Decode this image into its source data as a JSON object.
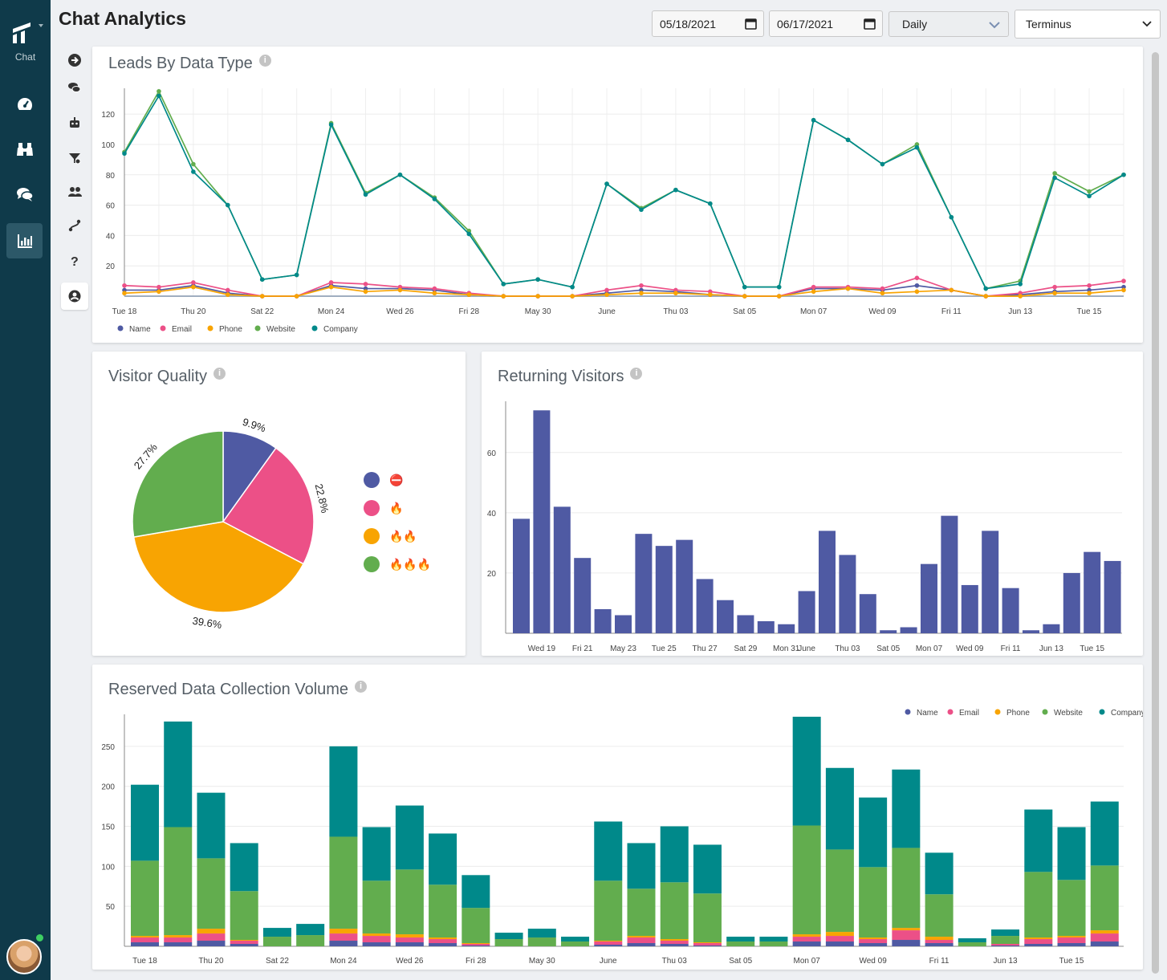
{
  "app": {
    "name": "Chat",
    "page_title": "Chat Analytics"
  },
  "controls": {
    "start_date": "05/18/2021",
    "end_date": "06/17/2021",
    "interval": "Daily",
    "account": "Terminus"
  },
  "nav": {
    "items": [
      "dashboard-icon",
      "binoculars-icon",
      "chat-bubbles-icon",
      "analytics-icon"
    ],
    "active": "analytics-icon"
  },
  "subnav": {
    "items": [
      "arrow-right-circle-icon",
      "conversations-icon",
      "bot-icon",
      "funnel-icon",
      "users-icon",
      "routing-icon",
      "help-icon",
      "user-circle-icon"
    ]
  },
  "colors": {
    "name": "#4f5aa3",
    "email": "#ec5087",
    "phone": "#f8a402",
    "website": "#62ad4e",
    "company": "#00898a"
  },
  "leads": {
    "title": "Leads By Data Type",
    "legend": [
      "Name",
      "Email",
      "Phone",
      "Website",
      "Company"
    ],
    "chart_data": {
      "type": "line",
      "x": [
        "Tue 18",
        "Wed 19",
        "Thu 20",
        "Fri 21",
        "Sat 22",
        "Sun 23",
        "Mon 24",
        "Tue 25",
        "Wed 26",
        "Thu 27",
        "Fri 28",
        "Sat 29",
        "May 30",
        "May 31",
        "June",
        "Wed 02",
        "Thu 03",
        "Fri 04",
        "Sat 05",
        "Sun 06",
        "Mon 07",
        "Tue 08",
        "Wed 09",
        "Thu 10",
        "Fri 11",
        "Sat 12",
        "Jun 13",
        "Mon 14",
        "Tue 15",
        "Wed 16"
      ],
      "xticks": [
        "Tue 18",
        "Thu 20",
        "Sat 22",
        "Mon 24",
        "Wed 26",
        "Fri 28",
        "May 30",
        "June",
        "Thu 03",
        "Sat 05",
        "Mon 07",
        "Wed 09",
        "Fri 11",
        "Jun 13",
        "Tue 15"
      ],
      "yticks": [
        20,
        40,
        60,
        80,
        100,
        120
      ],
      "ylim": [
        0,
        137
      ],
      "series": [
        {
          "name": "Name",
          "values": [
            4,
            4,
            7,
            2,
            0,
            0,
            7,
            5,
            5,
            4,
            1,
            0,
            0,
            0,
            2,
            4,
            3,
            1,
            0,
            0,
            5,
            5,
            4,
            7,
            4,
            0,
            1,
            3,
            4,
            6
          ]
        },
        {
          "name": "Email",
          "values": [
            7,
            6,
            9,
            4,
            0,
            0,
            9,
            8,
            6,
            5,
            2,
            0,
            0,
            0,
            4,
            7,
            4,
            3,
            0,
            0,
            6,
            6,
            5,
            12,
            4,
            0,
            2,
            6,
            7,
            10
          ]
        },
        {
          "name": "Phone",
          "values": [
            2,
            3,
            6,
            1,
            0,
            0,
            6,
            3,
            4,
            2,
            1,
            0,
            0,
            0,
            1,
            2,
            2,
            1,
            0,
            0,
            3,
            5,
            2,
            3,
            4,
            0,
            0,
            2,
            2,
            4
          ]
        },
        {
          "name": "Website",
          "values": [
            95,
            135,
            87,
            60,
            11,
            14,
            114,
            68,
            80,
            65,
            43,
            8,
            11,
            6,
            74,
            58,
            70,
            61,
            6,
            6,
            116,
            103,
            87,
            100,
            52,
            5,
            10,
            81,
            69,
            80
          ]
        },
        {
          "name": "Company",
          "values": [
            94,
            132,
            82,
            60,
            11,
            14,
            113,
            67,
            80,
            64,
            41,
            8,
            11,
            6,
            74,
            57,
            70,
            61,
            6,
            6,
            116,
            103,
            87,
            98,
            52,
            5,
            8,
            78,
            66,
            80
          ]
        }
      ]
    }
  },
  "visitor_quality": {
    "title": "Visitor Quality",
    "legend": [
      "⛔",
      "🔥",
      "🔥🔥",
      "🔥🔥🔥"
    ],
    "chart_data": {
      "type": "pie",
      "labels": [
        "⛔",
        "🔥",
        "🔥🔥",
        "🔥🔥🔥"
      ],
      "values": [
        9.9,
        22.8,
        39.6,
        27.7
      ],
      "value_labels": [
        "9.9%",
        "22.8%",
        "39.6%",
        "27.7%"
      ],
      "colors": [
        "#4f5aa3",
        "#ec5087",
        "#f8a402",
        "#62ad4e"
      ]
    }
  },
  "returning": {
    "title": "Returning Visitors",
    "chart_data": {
      "type": "bar",
      "categories": [
        "Tue 18",
        "Wed 19",
        "Thu 20",
        "Fri 21",
        "Sat 22",
        "May 23",
        "Mon 24",
        "Tue 25",
        "Wed 26",
        "Thu 27",
        "Fri 28",
        "Sat 29",
        "Sun 30",
        "Mon 31",
        "June",
        "Wed 02",
        "Thu 03",
        "Fri 04",
        "Sat 05",
        "Sun 06",
        "Mon 07",
        "Tue 08",
        "Wed 09",
        "Thu 10",
        "Fri 11",
        "Sat 12",
        "Jun 13",
        "Mon 14",
        "Tue 15",
        "Wed 16"
      ],
      "values": [
        38,
        74,
        42,
        25,
        8,
        6,
        33,
        29,
        31,
        18,
        11,
        6,
        4,
        3,
        14,
        34,
        26,
        13,
        1,
        2,
        23,
        39,
        16,
        34,
        15,
        1,
        3,
        20,
        27,
        24
      ],
      "xticks": [
        "Wed 19",
        "Fri 21",
        "May 23",
        "Tue 25",
        "Thu 27",
        "Sat 29",
        "Mon 31",
        "June",
        "Thu 03",
        "Sat 05",
        "Mon 07",
        "Wed 09",
        "Fri 11",
        "Jun 13",
        "Tue 15"
      ],
      "yticks": [
        20,
        40,
        60
      ],
      "ylim": [
        0,
        77
      ]
    }
  },
  "reserved": {
    "title": "Reserved Data Collection Volume",
    "legend": [
      "Name",
      "Email",
      "Phone",
      "Website",
      "Company"
    ],
    "chart_data": {
      "type": "bar",
      "stacked": true,
      "categories": [
        "Tue 18",
        "Wed 19",
        "Thu 20",
        "Fri 21",
        "Sat 22",
        "Sun 23",
        "Mon 24",
        "Tue 25",
        "Wed 26",
        "Thu 27",
        "Fri 28",
        "Sat 29",
        "May 30",
        "May 31",
        "June",
        "Wed 02",
        "Thu 03",
        "Fri 04",
        "Sat 05",
        "Sun 06",
        "Mon 07",
        "Tue 08",
        "Wed 09",
        "Thu 10",
        "Fri 11",
        "Sat 12",
        "Jun 13",
        "Mon 14",
        "Tue 15",
        "Wed 16"
      ],
      "xticks": [
        "Tue 18",
        "Thu 20",
        "Sat 22",
        "Mon 24",
        "Wed 26",
        "Fri 28",
        "May 30",
        "June",
        "Thu 03",
        "Sat 05",
        "Mon 07",
        "Wed 09",
        "Fri 11",
        "Jun 13",
        "Tue 15"
      ],
      "yticks": [
        50,
        100,
        150,
        200,
        250
      ],
      "ylim": [
        0,
        290
      ],
      "series": [
        {
          "name": "Name",
          "values": [
            5,
            5,
            7,
            3,
            0,
            0,
            7,
            5,
            5,
            4,
            1,
            0,
            0,
            0,
            2,
            4,
            3,
            1,
            0,
            0,
            6,
            6,
            4,
            8,
            4,
            0,
            1,
            3,
            4,
            6
          ]
        },
        {
          "name": "Email",
          "values": [
            6,
            6,
            9,
            4,
            0,
            0,
            9,
            8,
            6,
            5,
            2,
            0,
            0,
            0,
            4,
            7,
            4,
            3,
            0,
            0,
            6,
            7,
            5,
            12,
            4,
            0,
            2,
            6,
            7,
            10
          ]
        },
        {
          "name": "Phone",
          "values": [
            2,
            3,
            6,
            1,
            0,
            0,
            6,
            3,
            4,
            2,
            1,
            0,
            0,
            0,
            1,
            2,
            2,
            1,
            0,
            0,
            3,
            5,
            2,
            3,
            4,
            0,
            0,
            2,
            2,
            4
          ]
        },
        {
          "name": "Website",
          "values": [
            94,
            135,
            88,
            61,
            12,
            14,
            115,
            66,
            81,
            66,
            44,
            9,
            11,
            6,
            75,
            59,
            71,
            61,
            6,
            6,
            136,
            103,
            88,
            100,
            53,
            5,
            10,
            82,
            70,
            81
          ]
        },
        {
          "name": "Company",
          "values": [
            95,
            132,
            82,
            60,
            11,
            14,
            113,
            67,
            80,
            64,
            41,
            8,
            11,
            6,
            74,
            57,
            70,
            61,
            6,
            6,
            136,
            102,
            87,
            98,
            52,
            5,
            8,
            78,
            66,
            80
          ]
        }
      ]
    }
  }
}
